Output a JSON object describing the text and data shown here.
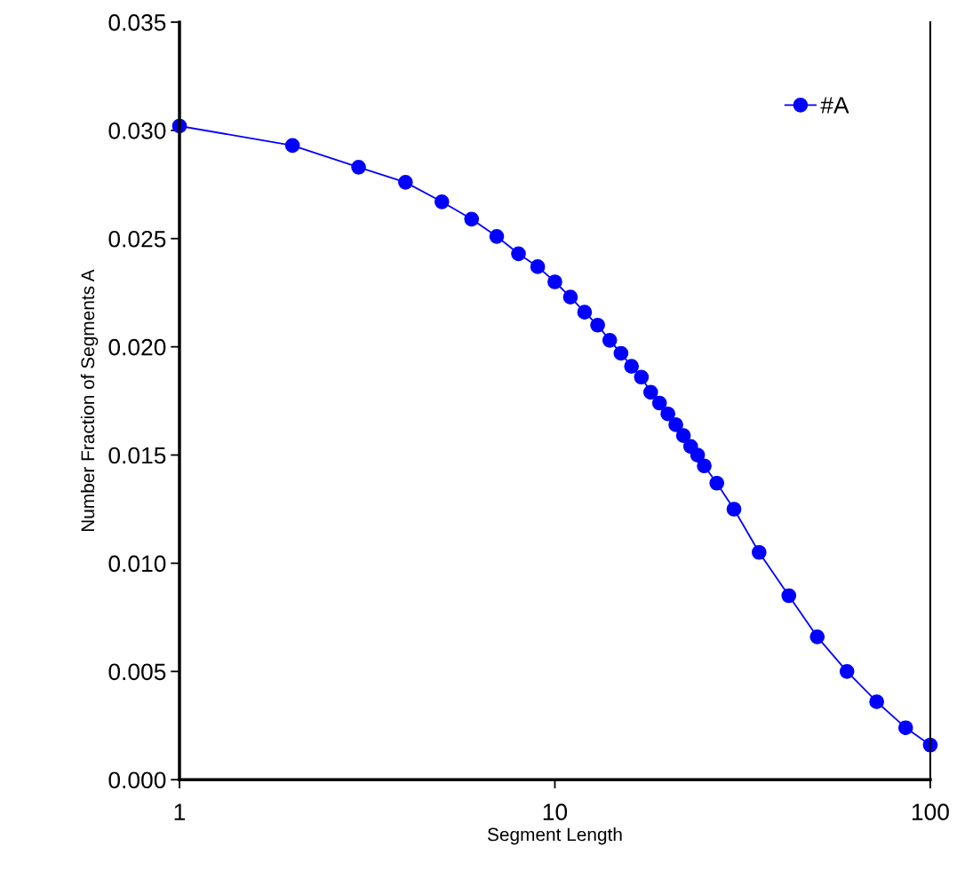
{
  "chart_data": {
    "type": "line",
    "xlabel": "Segment Length",
    "ylabel": "Number Fraction of Segments A",
    "log": "x",
    "xlim": [
      1,
      100
    ],
    "xticks": [
      1,
      10,
      100
    ],
    "ylim": [
      0,
      0.035
    ],
    "yticks": [
      {
        "value": 0,
        "label": "0.000"
      },
      {
        "value": 0.005,
        "label": "0.005"
      },
      {
        "value": 0.01,
        "label": "0.010"
      },
      {
        "value": 0.015,
        "label": "0.015"
      },
      {
        "value": 0.02,
        "label": "0.020"
      },
      {
        "value": 0.025,
        "label": "0.025"
      },
      {
        "value": 0.03,
        "label": "0.030"
      },
      {
        "value": 0.035,
        "label": "0.035"
      }
    ],
    "grid": false,
    "legend": "top right",
    "marker": "circle",
    "line_style": "solid",
    "series": [
      {
        "name": "#A",
        "color": "#0000ff",
        "x": [
          1,
          2,
          3,
          4,
          5,
          6,
          7,
          8,
          9,
          10,
          11,
          12,
          13,
          14,
          15,
          16,
          17,
          18,
          19,
          20,
          21,
          22,
          23,
          24,
          25,
          27,
          30,
          35,
          42,
          50,
          60,
          72,
          86,
          100
        ],
        "values": [
          0.0302,
          0.0293,
          0.0283,
          0.0276,
          0.0267,
          0.0259,
          0.0251,
          0.0243,
          0.0237,
          0.023,
          0.0223,
          0.0216,
          0.021,
          0.0203,
          0.0197,
          0.0191,
          0.0186,
          0.0179,
          0.0174,
          0.0169,
          0.0164,
          0.0159,
          0.0154,
          0.015,
          0.0145,
          0.0137,
          0.0125,
          0.0105,
          0.0085,
          0.0066,
          0.005,
          0.0036,
          0.0024,
          0.0016
        ]
      }
    ]
  }
}
